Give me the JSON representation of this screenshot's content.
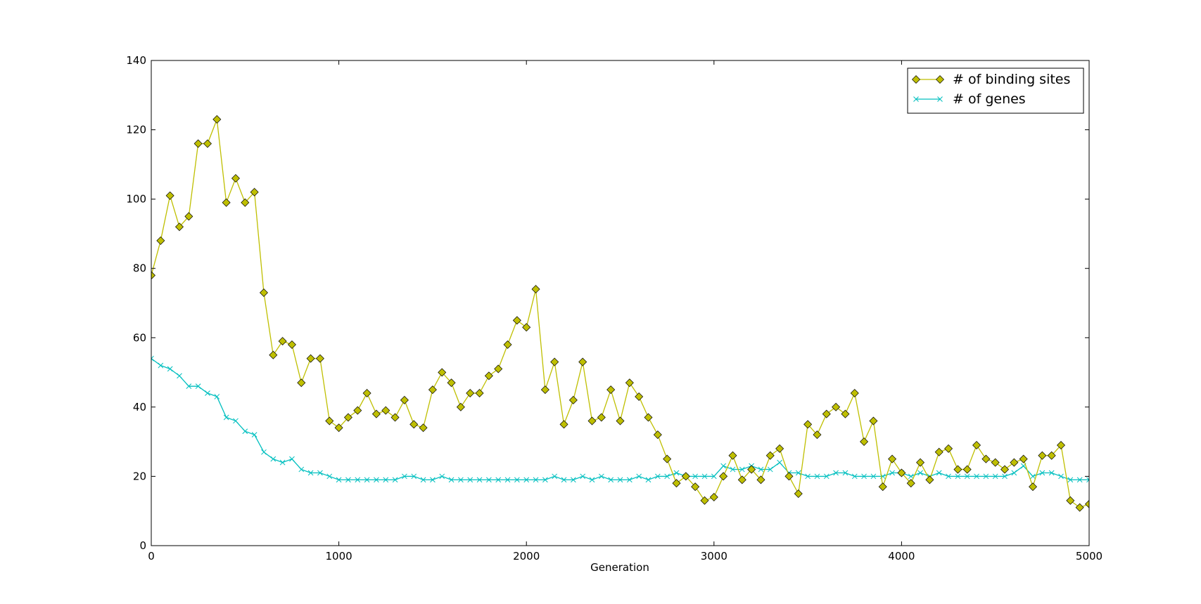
{
  "chart_data": {
    "type": "line",
    "title": "",
    "xlabel": "Generation",
    "ylabel": "",
    "xlim": [
      0,
      5000
    ],
    "ylim": [
      0,
      140
    ],
    "xticks": [
      "0",
      "1000",
      "2000",
      "3000",
      "4000",
      "5000"
    ],
    "yticks": [
      "0",
      "20",
      "40",
      "60",
      "80",
      "100",
      "120",
      "140"
    ],
    "grid": false,
    "legend_position": "top-right",
    "x": [
      0,
      50,
      100,
      150,
      200,
      250,
      300,
      350,
      400,
      450,
      500,
      550,
      600,
      650,
      700,
      750,
      800,
      850,
      900,
      950,
      1000,
      1050,
      1100,
      1150,
      1200,
      1250,
      1300,
      1350,
      1400,
      1450,
      1500,
      1550,
      1600,
      1650,
      1700,
      1750,
      1800,
      1850,
      1900,
      1950,
      2000,
      2050,
      2100,
      2150,
      2200,
      2250,
      2300,
      2350,
      2400,
      2450,
      2500,
      2550,
      2600,
      2650,
      2700,
      2750,
      2800,
      2850,
      2900,
      2950,
      3000,
      3050,
      3100,
      3150,
      3200,
      3250,
      3300,
      3350,
      3400,
      3450,
      3500,
      3550,
      3600,
      3650,
      3700,
      3750,
      3800,
      3850,
      3900,
      3950,
      4000,
      4050,
      4100,
      4150,
      4200,
      4250,
      4300,
      4350,
      4400,
      4450,
      4500,
      4550,
      4600,
      4650,
      4700,
      4750,
      4800,
      4850,
      4900,
      4950,
      5000
    ],
    "series": [
      {
        "name": "# of binding sites",
        "color": "#bfbf00",
        "marker": "diamond",
        "values": [
          78,
          88,
          101,
          92,
          95,
          116,
          116,
          123,
          99,
          106,
          99,
          102,
          73,
          55,
          59,
          58,
          47,
          54,
          54,
          36,
          34,
          37,
          39,
          44,
          38,
          39,
          37,
          42,
          35,
          34,
          45,
          50,
          47,
          40,
          44,
          44,
          49,
          51,
          58,
          65,
          63,
          74,
          45,
          53,
          35,
          42,
          53,
          36,
          37,
          45,
          36,
          47,
          43,
          37,
          32,
          25,
          18,
          20,
          17,
          13,
          14,
          20,
          26,
          19,
          22,
          19,
          26,
          28,
          20,
          15,
          35,
          32,
          38,
          40,
          38,
          44,
          30,
          36,
          17,
          25,
          21,
          18,
          24,
          19,
          27,
          28,
          22,
          22,
          29,
          25,
          24,
          22,
          24,
          25,
          17,
          26,
          26,
          29,
          13,
          11,
          12
        ]
      },
      {
        "name": "# of genes",
        "color": "#00bfbf",
        "marker": "x",
        "values": [
          54,
          52,
          51,
          49,
          46,
          46,
          44,
          43,
          37,
          36,
          33,
          32,
          27,
          25,
          24,
          25,
          22,
          21,
          21,
          20,
          19,
          19,
          19,
          19,
          19,
          19,
          19,
          20,
          20,
          19,
          19,
          20,
          19,
          19,
          19,
          19,
          19,
          19,
          19,
          19,
          19,
          19,
          19,
          20,
          19,
          19,
          20,
          19,
          20,
          19,
          19,
          19,
          20,
          19,
          20,
          20,
          21,
          20,
          20,
          20,
          20,
          23,
          22,
          22,
          23,
          22,
          22,
          24,
          21,
          21,
          20,
          20,
          20,
          21,
          21,
          20,
          20,
          20,
          20,
          21,
          21,
          20,
          21,
          20,
          21,
          20,
          20,
          20,
          20,
          20,
          20,
          20,
          21,
          23,
          20,
          21,
          21,
          20,
          19,
          19,
          19
        ]
      }
    ]
  }
}
